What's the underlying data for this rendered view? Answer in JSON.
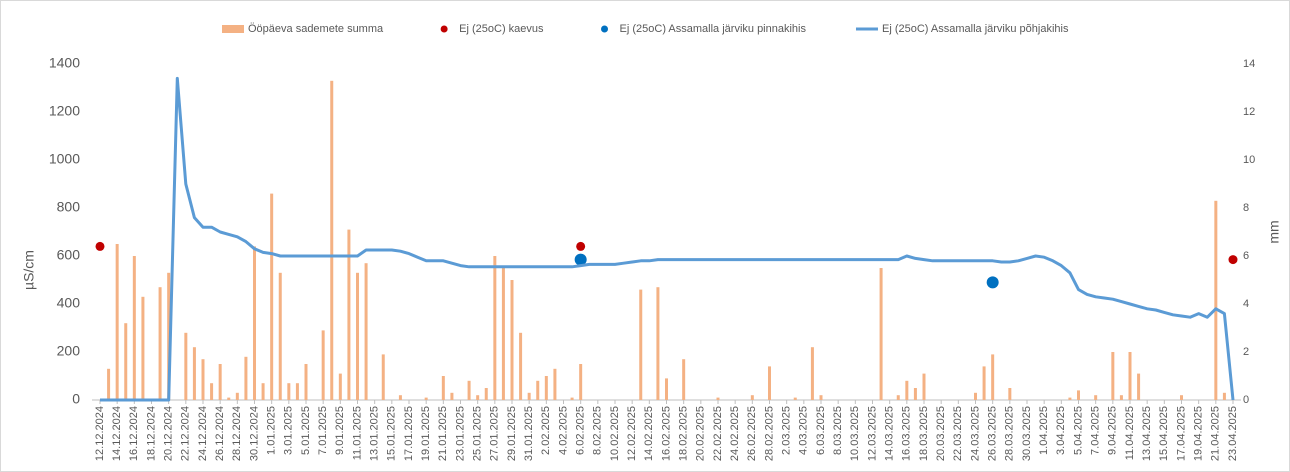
{
  "chart_data": {
    "type": "combo",
    "y_label": "µS/cm",
    "y2_label": "mm",
    "ylim": [
      0,
      1400
    ],
    "yticks": [
      0,
      200,
      400,
      600,
      800,
      1000,
      1200,
      1400
    ],
    "y2lim": [
      0,
      14
    ],
    "y2ticks": [
      0,
      2,
      4,
      6,
      8,
      10,
      12,
      14
    ],
    "grid": false,
    "legend": "top",
    "categories": [
      "12.12.2024",
      null,
      "14.12.2024",
      null,
      "16.12.2024",
      null,
      "18.12.2024",
      null,
      "20.12.2024",
      null,
      "22.12.2024",
      null,
      "24.12.2024",
      null,
      "26.12.2024",
      null,
      "28.12.2024",
      null,
      "30.12.2024",
      null,
      "1.01.2025",
      null,
      "3.01.2025",
      null,
      "5.01.2025",
      null,
      "7.01.2025",
      null,
      "9.01.2025",
      null,
      "11.01.2025",
      null,
      "13.01.2025",
      null,
      "15.01.2025",
      null,
      "17.01.2025",
      null,
      "19.01.2025",
      null,
      "21.01.2025",
      null,
      "23.01.2025",
      null,
      "25.01.2025",
      null,
      "27.01.2025",
      null,
      "29.01.2025",
      null,
      "31.01.2025",
      null,
      "2.02.2025",
      null,
      "4.02.2025",
      null,
      "6.02.2025",
      null,
      "8.02.2025",
      null,
      "10.02.2025",
      null,
      "12.02.2025",
      null,
      "14.02.2025",
      null,
      "16.02.2025",
      null,
      "18.02.2025",
      null,
      "20.02.2025",
      null,
      "22.02.2025",
      null,
      "24.02.2025",
      null,
      "26.02.2025",
      null,
      "28.02.2025",
      null,
      "2.03.2025",
      null,
      "4.03.2025",
      null,
      "6.03.2025",
      null,
      "8.03.2025",
      null,
      "10.03.2025",
      null,
      "12.03.2025",
      null,
      "14.03.2025",
      null,
      "16.03.2025",
      null,
      "18.03.2025",
      null,
      "20.03.2025",
      null,
      "22.03.2025",
      null,
      "24.03.2025",
      null,
      "26.03.2025",
      null,
      "28.03.2025",
      null,
      "30.03.2025",
      null,
      "1.04.2025",
      null,
      "3.04.2025",
      null,
      "5.04.2025",
      null,
      "7.04.2025",
      null,
      "9.04.2025",
      null,
      "11.04.2025",
      null,
      "13.04.2025",
      null,
      "15.04.2025",
      null,
      "17.04.2025",
      null,
      "19.04.2025",
      null,
      "21.04.2025",
      null,
      "23.04.2025"
    ],
    "series": [
      {
        "name": "Ööpäeva sademete summa",
        "type": "bar",
        "axis": "y2",
        "color": "#f4b183",
        "values": [
          0,
          1.3,
          6.5,
          3.2,
          6.0,
          4.3,
          0,
          4.7,
          5.3,
          0,
          2.8,
          2.2,
          1.7,
          0.7,
          1.5,
          0.1,
          0.3,
          1.8,
          6.4,
          0.7,
          8.6,
          5.3,
          0.7,
          0.7,
          1.5,
          0,
          2.9,
          13.3,
          1.1,
          7.1,
          5.3,
          5.7,
          0,
          1.9,
          0,
          0.2,
          0,
          0,
          0.1,
          0,
          1.0,
          0.3,
          0,
          0.8,
          0.2,
          0.5,
          6.0,
          5.5,
          5.0,
          2.8,
          0.3,
          0.8,
          1.0,
          1.3,
          0,
          0.1,
          1.5,
          0,
          0,
          0,
          0,
          0,
          0,
          4.6,
          0,
          4.7,
          0.9,
          0,
          1.7,
          0,
          0,
          0,
          0.1,
          0,
          0,
          0,
          0.2,
          0,
          1.4,
          0,
          0,
          0.1,
          0,
          2.2,
          0.2,
          0,
          0,
          0,
          0,
          0,
          0,
          5.5,
          0,
          0.2,
          0.8,
          0.5,
          1.1,
          0,
          0,
          0,
          0,
          0,
          0.3,
          1.4,
          1.9,
          0,
          0.5,
          0,
          0,
          0,
          0,
          0,
          0,
          0.1,
          0.4,
          0,
          0.2,
          0,
          2.0,
          0.2,
          2.0,
          1.1,
          0,
          0,
          0,
          0,
          0.2,
          0,
          0,
          0,
          8.3,
          0.3,
          0
        ]
      },
      {
        "name": "Ej (25oC) kaevus",
        "type": "scatter",
        "color": "#c00000",
        "values": [
          640,
          null,
          null,
          null,
          null,
          null,
          null,
          null,
          null,
          null,
          null,
          null,
          null,
          null,
          null,
          null,
          null,
          null,
          null,
          null,
          null,
          null,
          null,
          null,
          null,
          null,
          null,
          null,
          null,
          null,
          null,
          null,
          null,
          null,
          null,
          null,
          null,
          null,
          null,
          null,
          null,
          null,
          null,
          null,
          null,
          null,
          null,
          null,
          null,
          null,
          null,
          null,
          null,
          null,
          null,
          null,
          640,
          null,
          null,
          null,
          null,
          null,
          null,
          null,
          null,
          null,
          null,
          null,
          null,
          null,
          null,
          null,
          null,
          null,
          null,
          null,
          null,
          null,
          null,
          null,
          null,
          null,
          null,
          null,
          null,
          null,
          null,
          null,
          null,
          null,
          null,
          null,
          null,
          null,
          null,
          null,
          null,
          null,
          null,
          null,
          null,
          null,
          null,
          null,
          null,
          null,
          null,
          null,
          null,
          null,
          null,
          null,
          null,
          null,
          null,
          null,
          null,
          null,
          null,
          null,
          null,
          null,
          null,
          null,
          null,
          null,
          null,
          null,
          null,
          null,
          null,
          null,
          585
        ]
      },
      {
        "name": "Ej (25oC) Assamalla järviku pinnakihis",
        "type": "scatter",
        "color": "#0070c0",
        "values": [
          null,
          null,
          null,
          null,
          null,
          null,
          null,
          null,
          null,
          null,
          null,
          null,
          null,
          null,
          null,
          null,
          null,
          null,
          null,
          null,
          null,
          null,
          null,
          null,
          null,
          null,
          null,
          null,
          null,
          null,
          null,
          null,
          null,
          null,
          null,
          null,
          null,
          null,
          null,
          null,
          null,
          null,
          null,
          null,
          null,
          null,
          null,
          null,
          null,
          null,
          null,
          null,
          null,
          null,
          null,
          null,
          585,
          null,
          null,
          null,
          null,
          null,
          null,
          null,
          null,
          null,
          null,
          null,
          null,
          null,
          null,
          null,
          null,
          null,
          null,
          null,
          null,
          null,
          null,
          null,
          null,
          null,
          null,
          null,
          null,
          null,
          null,
          null,
          null,
          null,
          null,
          null,
          null,
          null,
          null,
          null,
          null,
          null,
          null,
          null,
          null,
          null,
          null,
          null,
          490,
          null,
          null,
          null,
          null,
          null,
          null,
          null,
          null,
          null,
          null,
          null,
          null,
          null,
          null,
          null,
          null,
          null,
          null,
          null,
          null,
          null,
          null,
          null,
          null,
          null,
          null,
          null,
          null
        ]
      },
      {
        "name": "Ej (25oC) Assamalla järviku põhjakihis",
        "type": "line",
        "color": "#5b9bd5",
        "values": [
          0,
          0,
          0,
          0,
          0,
          0,
          0,
          0,
          0,
          1340,
          900,
          760,
          720,
          720,
          700,
          690,
          680,
          660,
          630,
          615,
          610,
          600,
          600,
          600,
          600,
          600,
          600,
          600,
          600,
          600,
          600,
          625,
          625,
          625,
          625,
          620,
          610,
          595,
          580,
          580,
          580,
          570,
          560,
          555,
          555,
          555,
          555,
          555,
          555,
          555,
          555,
          555,
          555,
          555,
          555,
          555,
          560,
          565,
          565,
          565,
          565,
          570,
          575,
          580,
          580,
          585,
          585,
          585,
          585,
          585,
          585,
          585,
          585,
          585,
          585,
          585,
          585,
          585,
          585,
          585,
          585,
          585,
          585,
          585,
          585,
          585,
          585,
          585,
          585,
          585,
          585,
          585,
          585,
          585,
          600,
          590,
          585,
          580,
          580,
          580,
          580,
          580,
          580,
          580,
          580,
          575,
          575,
          580,
          590,
          600,
          595,
          580,
          560,
          530,
          460,
          440,
          430,
          425,
          420,
          410,
          400,
          390,
          380,
          375,
          365,
          355,
          350,
          345,
          360,
          345,
          380,
          360,
          0
        ]
      }
    ]
  }
}
